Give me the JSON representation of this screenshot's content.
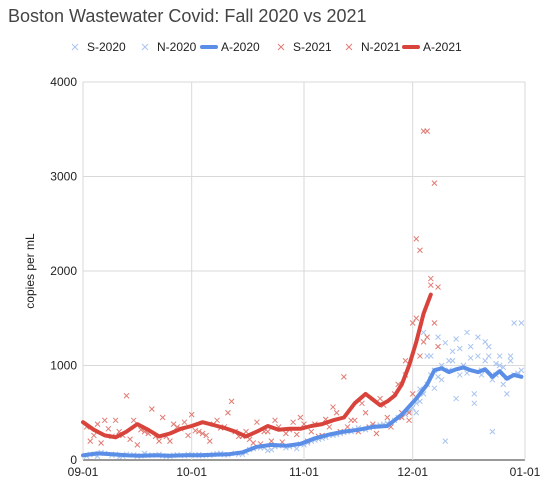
{
  "chart_data": {
    "type": "scatter",
    "title": "Boston Wastewater Covid: Fall 2020 vs 2021",
    "xlabel": "",
    "ylabel": "copies per mL",
    "x_ticks": [
      "09-01",
      "10-01",
      "11-01",
      "12-01",
      "01-01"
    ],
    "x_tick_days": [
      0,
      30,
      61,
      91,
      122
    ],
    "xlim": [
      0,
      122
    ],
    "y_ticks": [
      0,
      1000,
      2000,
      3000,
      4000
    ],
    "ylim": [
      0,
      4000
    ],
    "grid": true,
    "legend_position": "top",
    "legend": [
      "S-2020",
      "N-2020",
      "A-2020",
      "S-2021",
      "N-2021",
      "A-2021"
    ],
    "colors": {
      "2020": "#5b8ee6",
      "2020_points": "#a9c4f0",
      "2021": "#d8443c",
      "2021_points": "#e17b73"
    },
    "series": [
      {
        "name": "S-2020",
        "kind": "points",
        "year": "2020",
        "x": [
          1,
          3,
          5,
          8,
          10,
          12,
          15,
          17,
          19,
          22,
          24,
          26,
          29,
          31,
          33,
          36,
          38,
          40,
          43,
          45,
          47,
          50,
          52,
          54,
          57,
          59,
          61,
          63,
          65,
          67,
          69,
          71,
          73,
          75,
          77,
          79,
          81,
          83,
          85,
          87,
          89,
          91,
          92,
          93,
          94,
          95,
          96,
          97,
          98,
          99,
          100,
          101,
          102,
          103,
          104,
          105,
          106,
          107,
          108,
          109,
          110,
          111,
          112,
          113,
          114,
          115,
          116,
          117,
          118,
          119,
          120,
          121
        ],
        "y": [
          40,
          60,
          80,
          50,
          30,
          60,
          40,
          70,
          50,
          45,
          40,
          55,
          60,
          50,
          45,
          60,
          70,
          55,
          60,
          80,
          120,
          130,
          110,
          150,
          140,
          120,
          160,
          200,
          220,
          240,
          260,
          280,
          300,
          320,
          330,
          340,
          360,
          380,
          400,
          450,
          480,
          550,
          500,
          620,
          700,
          1100,
          900,
          760,
          880,
          1000,
          1240,
          950,
          1050,
          1280,
          900,
          1000,
          1350,
          1200,
          700,
          1300,
          950,
          1050,
          1200,
          850,
          1020,
          1100,
          980,
          870,
          1050,
          900,
          920,
          1450
        ]
      },
      {
        "name": "N-2020",
        "kind": "points",
        "year": "2020",
        "x": [
          2,
          4,
          6,
          9,
          11,
          14,
          16,
          18,
          21,
          23,
          25,
          28,
          30,
          32,
          35,
          37,
          39,
          42,
          44,
          46,
          49,
          51,
          53,
          56,
          58,
          60,
          62,
          64,
          66,
          68,
          70,
          72,
          74,
          76,
          78,
          80,
          82,
          84,
          86,
          88,
          90,
          92,
          93,
          94,
          95,
          96,
          97,
          98,
          99,
          100,
          101,
          102,
          103,
          104,
          105,
          106,
          107,
          108,
          109,
          110,
          111,
          112,
          113,
          114,
          115,
          116,
          117,
          118,
          119,
          120,
          121
        ],
        "y": [
          60,
          40,
          70,
          60,
          40,
          55,
          45,
          50,
          60,
          40,
          50,
          45,
          55,
          60,
          50,
          65,
          55,
          70,
          60,
          110,
          130,
          100,
          140,
          130,
          150,
          170,
          180,
          210,
          230,
          260,
          270,
          290,
          300,
          340,
          320,
          350,
          370,
          390,
          420,
          500,
          520,
          600,
          750,
          1350,
          800,
          1100,
          950,
          1300,
          850,
          200,
          1050,
          1150,
          650,
          1180,
          1000,
          920,
          1080,
          600,
          1100,
          900,
          1250,
          1100,
          300,
          900,
          1000,
          800,
          700,
          1100,
          1450,
          900,
          950
        ]
      },
      {
        "name": "A-2020",
        "kind": "line",
        "year": "2020",
        "x": [
          0,
          4,
          8,
          12,
          16,
          20,
          24,
          28,
          32,
          36,
          40,
          44,
          48,
          52,
          56,
          60,
          64,
          68,
          72,
          76,
          80,
          84,
          88,
          92,
          95,
          97,
          99,
          101,
          103,
          105,
          107,
          109,
          111,
          113,
          115,
          117,
          119,
          121
        ],
        "y": [
          50,
          70,
          60,
          50,
          45,
          50,
          45,
          50,
          50,
          55,
          60,
          80,
          140,
          160,
          150,
          170,
          230,
          270,
          300,
          320,
          350,
          360,
          480,
          650,
          800,
          950,
          970,
          930,
          960,
          980,
          950,
          930,
          960,
          880,
          940,
          860,
          900,
          880
        ]
      },
      {
        "name": "S-2021",
        "kind": "points",
        "year": "2021",
        "x": [
          1,
          3,
          5,
          7,
          9,
          11,
          13,
          15,
          17,
          19,
          21,
          23,
          25,
          27,
          29,
          31,
          33,
          35,
          37,
          39,
          41,
          43,
          45,
          47,
          49,
          51,
          53,
          55,
          57,
          59,
          61,
          63,
          65,
          67,
          69,
          71,
          73,
          75,
          77,
          79,
          81,
          83,
          85,
          87,
          88,
          89,
          90,
          91,
          92,
          93,
          94,
          95,
          96,
          97,
          98
        ],
        "y": [
          350,
          260,
          180,
          330,
          420,
          260,
          220,
          160,
          300,
          540,
          200,
          250,
          380,
          330,
          260,
          310,
          280,
          200,
          420,
          350,
          620,
          250,
          300,
          180,
          170,
          300,
          420,
          190,
          320,
          270,
          380,
          300,
          250,
          430,
          560,
          300,
          350,
          420,
          600,
          350,
          280,
          580,
          350,
          800,
          500,
          900,
          420,
          700,
          2340,
          2220,
          1250,
          3480,
          1920,
          1450,
          1830
        ]
      },
      {
        "name": "N-2021",
        "kind": "points",
        "year": "2021",
        "x": [
          2,
          4,
          6,
          8,
          10,
          12,
          14,
          16,
          18,
          20,
          22,
          24,
          26,
          28,
          30,
          32,
          34,
          36,
          38,
          40,
          42,
          44,
          46,
          48,
          50,
          52,
          54,
          56,
          58,
          60,
          62,
          64,
          66,
          68,
          70,
          72,
          74,
          76,
          78,
          80,
          82,
          84,
          86,
          88,
          89,
          90,
          91,
          92,
          93,
          94,
          95,
          96,
          97,
          98
        ],
        "y": [
          200,
          380,
          420,
          250,
          300,
          680,
          420,
          320,
          280,
          250,
          450,
          200,
          350,
          400,
          480,
          300,
          260,
          380,
          340,
          500,
          300,
          250,
          220,
          400,
          300,
          200,
          350,
          280,
          400,
          450,
          200,
          380,
          260,
          350,
          500,
          880,
          420,
          300,
          500,
          380,
          650,
          450,
          700,
          450,
          1050,
          500,
          1450,
          1500,
          1100,
          3480,
          1300,
          1850,
          2930,
          1200
        ]
      },
      {
        "name": "A-2021",
        "kind": "line",
        "year": "2021",
        "x": [
          0,
          3,
          6,
          9,
          12,
          15,
          18,
          21,
          24,
          27,
          30,
          33,
          36,
          39,
          42,
          45,
          48,
          51,
          54,
          57,
          60,
          63,
          66,
          69,
          72,
          75,
          78,
          80,
          82,
          84,
          86,
          88,
          90,
          92,
          94,
          96
        ],
        "y": [
          400,
          320,
          260,
          240,
          300,
          380,
          320,
          250,
          280,
          330,
          360,
          400,
          370,
          340,
          300,
          250,
          300,
          360,
          320,
          330,
          330,
          360,
          380,
          420,
          450,
          600,
          700,
          640,
          580,
          620,
          680,
          800,
          1000,
          1250,
          1550,
          1750
        ]
      }
    ]
  }
}
